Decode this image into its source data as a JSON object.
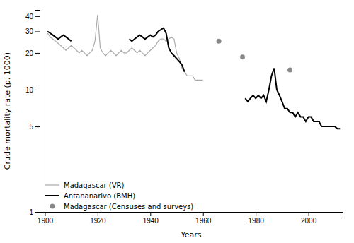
{
  "chart_data": {
    "type": "line",
    "xlabel": "Years",
    "ylabel": "Crude mortality rate (p. 1000)",
    "log": "y",
    "grid": false,
    "legend": "lower left",
    "xlim": [
      1898,
      2013
    ],
    "ylim": [
      1,
      45
    ],
    "xticks": [
      1900,
      1920,
      1940,
      1960,
      1980,
      2000
    ],
    "yticks": [
      1,
      5,
      10,
      20,
      30,
      40
    ],
    "series": [
      {
        "name": "Madagascar (VR)",
        "type": "line",
        "color": "#aaaaaa",
        "x": [
          1901,
          1902,
          1903,
          1904,
          1905,
          1906,
          1907,
          1908,
          1909,
          1910,
          1911,
          1912,
          1913,
          1914,
          1915,
          1916,
          1917,
          1918,
          1919,
          1920,
          1921,
          1922,
          1923,
          1924,
          1925,
          1926,
          1927,
          1928,
          1929,
          1930,
          1931,
          1932,
          1933,
          1934,
          1935,
          1936,
          1937,
          1938,
          1939,
          1940,
          1941,
          1942,
          1943,
          1944,
          1945,
          1946,
          1947,
          1948,
          1949,
          1950,
          1951,
          1952,
          1953,
          1954,
          1955,
          1956,
          1957,
          1958,
          1959,
          1960
        ],
        "values": [
          29,
          27,
          26,
          25,
          24,
          23,
          22,
          21,
          22,
          23,
          22,
          21,
          20,
          21,
          20,
          19,
          20,
          21,
          25,
          41,
          22,
          20,
          19,
          20,
          21,
          20,
          19,
          20,
          21,
          20,
          20,
          21,
          22,
          21,
          20,
          21,
          20,
          19,
          20,
          21,
          22,
          23,
          25,
          26,
          26,
          25,
          26,
          27,
          26,
          20,
          18,
          15,
          14,
          13,
          13,
          13,
          12,
          12,
          12,
          12
        ]
      },
      {
        "name": "Antananarivo (BMH)",
        "type": "line",
        "color": "#000000",
        "x": [
          1901,
          1902,
          1903,
          1904,
          1905,
          1906,
          1907,
          1908,
          1909,
          1910,
          null,
          1932,
          1933,
          1934,
          1935,
          1936,
          1937,
          1938,
          1939,
          1940,
          1941,
          1942,
          1943,
          1944,
          1945,
          1946,
          1947,
          1948,
          1949,
          1950,
          1951,
          1952,
          1953,
          null,
          1976,
          1977,
          1978,
          1979,
          1980,
          1981,
          1982,
          1983,
          1984,
          1985,
          1986,
          1987,
          1988,
          1989,
          1990,
          1991,
          1992,
          1993,
          1994,
          1995,
          1996,
          1997,
          1998,
          1999,
          2000,
          2001,
          2002,
          2003,
          2004,
          2005,
          2006,
          2007,
          2008,
          2009,
          2010,
          2011,
          2012
        ],
        "values": [
          30,
          29,
          28,
          27,
          26,
          27,
          28,
          27,
          26,
          25,
          null,
          26,
          25,
          26,
          27,
          28,
          27,
          26,
          27,
          28,
          27,
          28,
          30,
          31,
          32,
          29,
          22,
          20,
          19,
          18,
          17,
          16,
          14,
          null,
          8.5,
          8.0,
          8.5,
          9.0,
          8.5,
          9.0,
          8.5,
          9.0,
          8.0,
          10.0,
          13.0,
          15.0,
          10.0,
          9.0,
          8.0,
          7.0,
          7.0,
          6.5,
          6.5,
          6.0,
          6.5,
          6.0,
          6.0,
          5.5,
          6.0,
          6.0,
          5.5,
          5.5,
          5.5,
          5.0,
          5.0,
          5.0,
          5.0,
          5.0,
          5.0,
          4.8,
          4.8
        ]
      },
      {
        "name": "Madagascar (Censuses and surveys)",
        "type": "scatter",
        "marker": "circle",
        "color": "#888888",
        "x": [
          1966,
          1975,
          1993
        ],
        "values": [
          25,
          18.5,
          14.5
        ]
      }
    ]
  }
}
